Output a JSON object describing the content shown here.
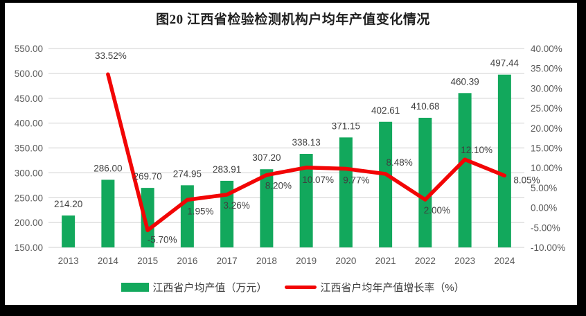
{
  "chart_data": {
    "type": "combo-bar-line",
    "title": "图20 江西省检验检测机构户均年产值变化情况",
    "categories": [
      "2013",
      "2014",
      "2015",
      "2016",
      "2017",
      "2018",
      "2019",
      "2020",
      "2021",
      "2022",
      "2023",
      "2024"
    ],
    "series": [
      {
        "name": "江西省户均产值（万元）",
        "type": "bar",
        "axis": "left",
        "color": "#12A85C",
        "values": [
          214.2,
          286.0,
          269.7,
          274.95,
          283.91,
          307.2,
          338.13,
          371.15,
          402.61,
          410.68,
          460.39,
          497.44
        ],
        "labels": [
          "214.20",
          "286.00",
          "269.70",
          "274.95",
          "283.91",
          "307.20",
          "338.13",
          "371.15",
          "402.61",
          "410.68",
          "460.39",
          "497.44"
        ]
      },
      {
        "name": "江西省户均年产值增长率（%）",
        "type": "line",
        "axis": "right",
        "color": "#F20505",
        "values": [
          null,
          33.52,
          -5.7,
          1.95,
          3.26,
          8.2,
          10.07,
          9.77,
          8.48,
          2.0,
          12.1,
          8.05
        ],
        "labels": [
          null,
          "33.52%",
          "-5.70%",
          "1.95%",
          "3.26%",
          "8.20%",
          "10.07%",
          "9.77%",
          "8.48%",
          "2.00%",
          "12.10%",
          "8.05%"
        ]
      }
    ],
    "axes": {
      "left": {
        "min": 150,
        "max": 550,
        "step": 50,
        "tick_labels": [
          "150.00",
          "200.00",
          "250.00",
          "300.00",
          "350.00",
          "400.00",
          "450.00",
          "500.00",
          "550.00"
        ]
      },
      "right": {
        "min": -10,
        "max": 40,
        "step": 5,
        "tick_labels": [
          "-10.00%",
          "-5.00%",
          "0.00%",
          "5.00%",
          "10.00%",
          "15.00%",
          "20.00%",
          "25.00%",
          "30.00%",
          "35.00%",
          "40.00%"
        ]
      }
    },
    "grid": true,
    "legend_position": "bottom",
    "line_label_offsets": [
      null,
      [
        4,
        -22,
        "middle"
      ],
      [
        21,
        18,
        "middle"
      ],
      [
        19,
        21,
        "middle"
      ],
      [
        14,
        20,
        "middle"
      ],
      [
        17,
        20,
        "middle"
      ],
      [
        17,
        22,
        "middle"
      ],
      [
        15,
        21,
        "middle"
      ],
      [
        20,
        -12,
        "middle"
      ],
      [
        17,
        20,
        "middle"
      ],
      [
        17,
        -9,
        "middle"
      ],
      [
        13,
        11,
        "start"
      ]
    ],
    "colors": {
      "grid": "#D9D9D9",
      "axis_line": "#D9D9D9",
      "tick_text": "#595959",
      "data_label_text": "#3F3F3F",
      "title_text": "#1F1F1F",
      "frame": "#000000",
      "plot_background": "#FFFFFF"
    }
  }
}
